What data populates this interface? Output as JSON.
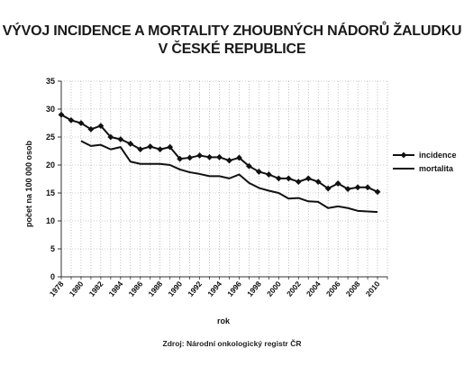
{
  "title_line1": "VÝVOJ INCIDENCE A MORTALITY ZHOUBNÝCH  NÁDORŮ ŽALUDKU",
  "title_line2": "V ČESKÉ REPUBLICE",
  "source": "Zdroj: Národní onkologický  registr ČR",
  "chart_data": {
    "type": "line",
    "xlabel": "rok",
    "ylabel": "počet na 100 000 osob",
    "xlim": [
      1978,
      2011
    ],
    "ylim": [
      0,
      35
    ],
    "y_ticks": [
      0,
      5,
      10,
      15,
      20,
      25,
      30,
      35
    ],
    "x_tick_labels": [
      "1978",
      "1980",
      "1982",
      "1984",
      "1986",
      "1988",
      "1990",
      "1992",
      "1994",
      "1996",
      "1998",
      "2000",
      "2002",
      "2004",
      "2006",
      "2008",
      "2010"
    ],
    "grid": true,
    "grid_style": "dotted",
    "legend_position": "right",
    "series": [
      {
        "name": "incidence",
        "marker": "diamond",
        "color": "#111111",
        "x": [
          1978,
          1979,
          1980,
          1981,
          1982,
          1983,
          1984,
          1985,
          1986,
          1987,
          1988,
          1989,
          1990,
          1991,
          1992,
          1993,
          1994,
          1995,
          1996,
          1997,
          1998,
          1999,
          2000,
          2001,
          2002,
          2003,
          2004,
          2005,
          2006,
          2007,
          2008,
          2009,
          2010
        ],
        "y": [
          29.0,
          28.0,
          27.5,
          26.4,
          27.0,
          25.0,
          24.6,
          23.8,
          22.8,
          23.3,
          22.8,
          23.2,
          21.1,
          21.3,
          21.7,
          21.4,
          21.4,
          20.8,
          21.3,
          19.8,
          18.8,
          18.3,
          17.6,
          17.6,
          17.0,
          17.6,
          17.0,
          15.8,
          16.7,
          15.7,
          16.0,
          16.0,
          15.2
        ]
      },
      {
        "name": "mortalita",
        "marker": "none",
        "color": "#111111",
        "x": [
          1980,
          1981,
          1982,
          1983,
          1984,
          1985,
          1986,
          1987,
          1988,
          1989,
          1990,
          1991,
          1992,
          1993,
          1994,
          1995,
          1996,
          1997,
          1998,
          1999,
          2000,
          2001,
          2002,
          2003,
          2004,
          2005,
          2006,
          2007,
          2008,
          2009,
          2010
        ],
        "y": [
          24.3,
          23.4,
          23.6,
          22.8,
          23.2,
          20.6,
          20.2,
          20.2,
          20.2,
          20.0,
          19.2,
          18.7,
          18.4,
          18.0,
          18.0,
          17.6,
          18.3,
          16.8,
          15.9,
          15.4,
          15.0,
          14.0,
          14.1,
          13.5,
          13.4,
          12.3,
          12.6,
          12.3,
          11.8,
          11.7,
          11.6
        ]
      }
    ]
  }
}
